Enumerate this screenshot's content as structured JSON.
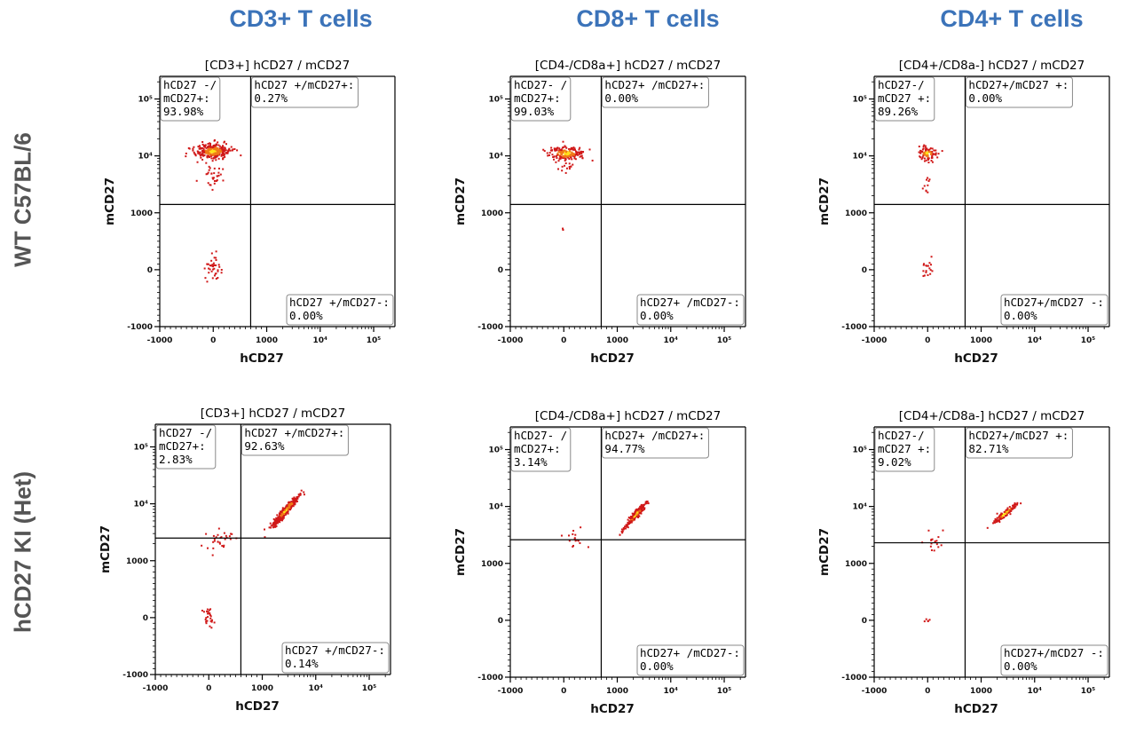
{
  "columns": [
    "CD3+ T cells",
    "CD8+ T cells",
    "CD4+ T cells"
  ],
  "rows": [
    "WT C57BL/6",
    "hCD27 KI (Het)"
  ],
  "colors": {
    "title_blue": "#3b73b9",
    "row_gray": "#555555",
    "dot_red": "#d01818",
    "dot_orange": "#f07a18",
    "dot_yellow": "#ffe21a"
  },
  "chart_data": [
    {
      "type": "scatter",
      "title": "[CD3+] hCD27 / mCD27",
      "xlabel": "hCD27",
      "ylabel": "mCD27",
      "x_scale": "biexponential",
      "y_scale": "biexponential",
      "xlim": [
        -1000,
        250000
      ],
      "ylim": [
        -1000,
        250000
      ],
      "x_ticks": [
        "-1000",
        "0",
        "1000",
        "10⁴",
        "10⁵"
      ],
      "y_ticks": [
        "-1000",
        "0",
        "1000",
        "10⁴",
        "10⁵"
      ],
      "gate": {
        "x": 700,
        "y": 1400
      },
      "quadrants": {
        "upper_left": {
          "label": [
            "hCD27 -/",
            "mCD27+:"
          ],
          "value": "93.98%"
        },
        "upper_right": {
          "label": [
            "hCD27 +/mCD27+:"
          ],
          "value": "0.27%"
        },
        "lower_right": {
          "label": [
            "hCD27 +/mCD27-:"
          ],
          "value": "0.00%"
        }
      },
      "clusters": [
        {
          "x": 0,
          "y": 12000,
          "sx": 0.16,
          "sy": 0.07,
          "n": 300,
          "dense": true
        },
        {
          "x": 0,
          "y": 4000,
          "sx": 0.12,
          "sy": 0.12,
          "n": 30,
          "dense": false
        },
        {
          "x": 0,
          "y": 0,
          "sx": 0.08,
          "sy": 0.14,
          "n": 38,
          "dense": false
        }
      ]
    },
    {
      "type": "scatter",
      "title": "[CD4-/CD8a+] hCD27 / mCD27",
      "xlabel": "hCD27",
      "ylabel": "mCD27",
      "x_scale": "biexponential",
      "y_scale": "biexponential",
      "xlim": [
        -1000,
        250000
      ],
      "ylim": [
        -1000,
        250000
      ],
      "x_ticks": [
        "-1000",
        "0",
        "1000",
        "10⁴",
        "10⁵"
      ],
      "y_ticks": [
        "-1000",
        "0",
        "1000",
        "10⁴",
        "10⁵"
      ],
      "gate": {
        "x": 700,
        "y": 1400
      },
      "quadrants": {
        "upper_left": {
          "label": [
            "hCD27- /",
            "mCD27+:"
          ],
          "value": "99.03%"
        },
        "upper_right": {
          "label": [
            "hCD27+ /mCD27+:"
          ],
          "value": "0.00%"
        },
        "lower_right": {
          "label": [
            "hCD27+ /mCD27-:"
          ],
          "value": "0.00%"
        }
      },
      "clusters": [
        {
          "x": 50,
          "y": 11000,
          "sx": 0.17,
          "sy": 0.06,
          "n": 200,
          "dense": true
        },
        {
          "x": 0,
          "y": 6000,
          "sx": 0.12,
          "sy": 0.05,
          "n": 14,
          "dense": false
        },
        {
          "x": 0,
          "y": 700,
          "sx": 0.04,
          "sy": 0.02,
          "n": 2,
          "dense": false
        }
      ]
    },
    {
      "type": "scatter",
      "title": "[CD4+/CD8a-] hCD27 / mCD27",
      "xlabel": "hCD27",
      "ylabel": "mCD27",
      "x_scale": "biexponential",
      "y_scale": "biexponential",
      "xlim": [
        -1000,
        250000
      ],
      "ylim": [
        -1000,
        250000
      ],
      "x_ticks": [
        "-1000",
        "0",
        "1000",
        "10⁴",
        "10⁵"
      ],
      "y_ticks": [
        "-1000",
        "0",
        "1000",
        "10⁴",
        "10⁵"
      ],
      "gate": {
        "x": 700,
        "y": 1400
      },
      "quadrants": {
        "upper_left": {
          "label": [
            "hCD27-/",
            "mCD27 +:"
          ],
          "value": "89.26%"
        },
        "upper_right": {
          "label": [
            "hCD27+/mCD27 +:"
          ],
          "value": "0.00%"
        },
        "lower_right": {
          "label": [
            "hCD27+/mCD27 -:"
          ],
          "value": "0.00%"
        }
      },
      "clusters": [
        {
          "x": 0,
          "y": 11000,
          "sx": 0.09,
          "sy": 0.06,
          "n": 80,
          "dense": true
        },
        {
          "x": 0,
          "y": 3000,
          "sx": 0.06,
          "sy": 0.1,
          "n": 10,
          "dense": false
        },
        {
          "x": 0,
          "y": 100,
          "sx": 0.06,
          "sy": 0.13,
          "n": 18,
          "dense": false
        }
      ]
    },
    {
      "type": "scatter",
      "title": "[CD3+] hCD27 / mCD27",
      "xlabel": "hCD27",
      "ylabel": "mCD27",
      "x_scale": "biexponential",
      "y_scale": "biexponential",
      "xlim": [
        -1000,
        250000
      ],
      "ylim": [
        -1000,
        250000
      ],
      "x_ticks": [
        "-1000",
        "0",
        "1000",
        "10⁴",
        "10⁵"
      ],
      "y_ticks": [
        "-1000",
        "0",
        "1000",
        "10⁴",
        "10⁵"
      ],
      "gate": {
        "x": 600,
        "y": 2500
      },
      "quadrants": {
        "upper_left": {
          "label": [
            "hCD27 -/",
            "mCD27+:"
          ],
          "value": "2.83%"
        },
        "upper_right": {
          "label": [
            "hCD27 +/mCD27+:"
          ],
          "value": "92.63%"
        },
        "lower_right": {
          "label": [
            "hCD27 +/mCD27-:"
          ],
          "value": "0.14%"
        }
      },
      "clusters": [
        {
          "x": 2800,
          "y": 7800,
          "sx": 0.12,
          "sy": 0.06,
          "n": 380,
          "dense": true,
          "corr": 0.75
        },
        {
          "x": 200,
          "y": 2500,
          "sx": 0.12,
          "sy": 0.1,
          "n": 30,
          "dense": false
        },
        {
          "x": 0,
          "y": 0,
          "sx": 0.05,
          "sy": 0.08,
          "n": 26,
          "dense": false
        }
      ]
    },
    {
      "type": "scatter",
      "title": "[CD4-/CD8a+] hCD27 / mCD27",
      "xlabel": "hCD27",
      "ylabel": "mCD27",
      "x_scale": "biexponential",
      "y_scale": "biexponential",
      "xlim": [
        -1000,
        250000
      ],
      "ylim": [
        -1000,
        250000
      ],
      "x_ticks": [
        "-1000",
        "0",
        "1000",
        "10⁴",
        "10⁵"
      ],
      "y_ticks": [
        "-1000",
        "0",
        "1000",
        "10⁴",
        "10⁵"
      ],
      "gate": {
        "x": 700,
        "y": 2600
      },
      "quadrants": {
        "upper_left": {
          "label": [
            "hCD27- /",
            "mCD27+:"
          ],
          "value": "3.14%"
        },
        "upper_right": {
          "label": [
            "hCD27+ /mCD27+:"
          ],
          "value": "94.77%"
        },
        "lower_right": {
          "label": [
            "hCD27+ /mCD27-:"
          ],
          "value": "0.00%"
        }
      },
      "clusters": [
        {
          "x": 2200,
          "y": 7000,
          "sx": 0.1,
          "sy": 0.05,
          "n": 230,
          "dense": true,
          "corr": 0.75
        },
        {
          "x": 200,
          "y": 2500,
          "sx": 0.1,
          "sy": 0.1,
          "n": 16,
          "dense": false
        }
      ]
    },
    {
      "type": "scatter",
      "title": "[CD4+/CD8a-] hCD27 / mCD27",
      "xlabel": "hCD27",
      "ylabel": "mCD27",
      "x_scale": "biexponential",
      "y_scale": "biexponential",
      "xlim": [
        -1000,
        250000
      ],
      "ylim": [
        -1000,
        250000
      ],
      "x_ticks": [
        "-1000",
        "0",
        "1000",
        "10⁴",
        "10⁵"
      ],
      "y_ticks": [
        "-1000",
        "0",
        "1000",
        "10⁴",
        "10⁵"
      ],
      "gate": {
        "x": 700,
        "y": 2300
      },
      "quadrants": {
        "upper_left": {
          "label": [
            "hCD27-/",
            "mCD27 +:"
          ],
          "value": "9.02%"
        },
        "upper_right": {
          "label": [
            "hCD27+/mCD27 +:"
          ],
          "value": "82.71%"
        },
        "lower_right": {
          "label": [
            "hCD27+/mCD27 -:"
          ],
          "value": "0.00%"
        }
      },
      "clusters": [
        {
          "x": 2800,
          "y": 7500,
          "sx": 0.12,
          "sy": 0.04,
          "n": 110,
          "dense": true,
          "corr": 0.6
        },
        {
          "x": 100,
          "y": 2500,
          "sx": 0.08,
          "sy": 0.12,
          "n": 16,
          "dense": false
        },
        {
          "x": 0,
          "y": 0,
          "sx": 0.03,
          "sy": 0.03,
          "n": 5,
          "dense": false
        }
      ]
    }
  ]
}
